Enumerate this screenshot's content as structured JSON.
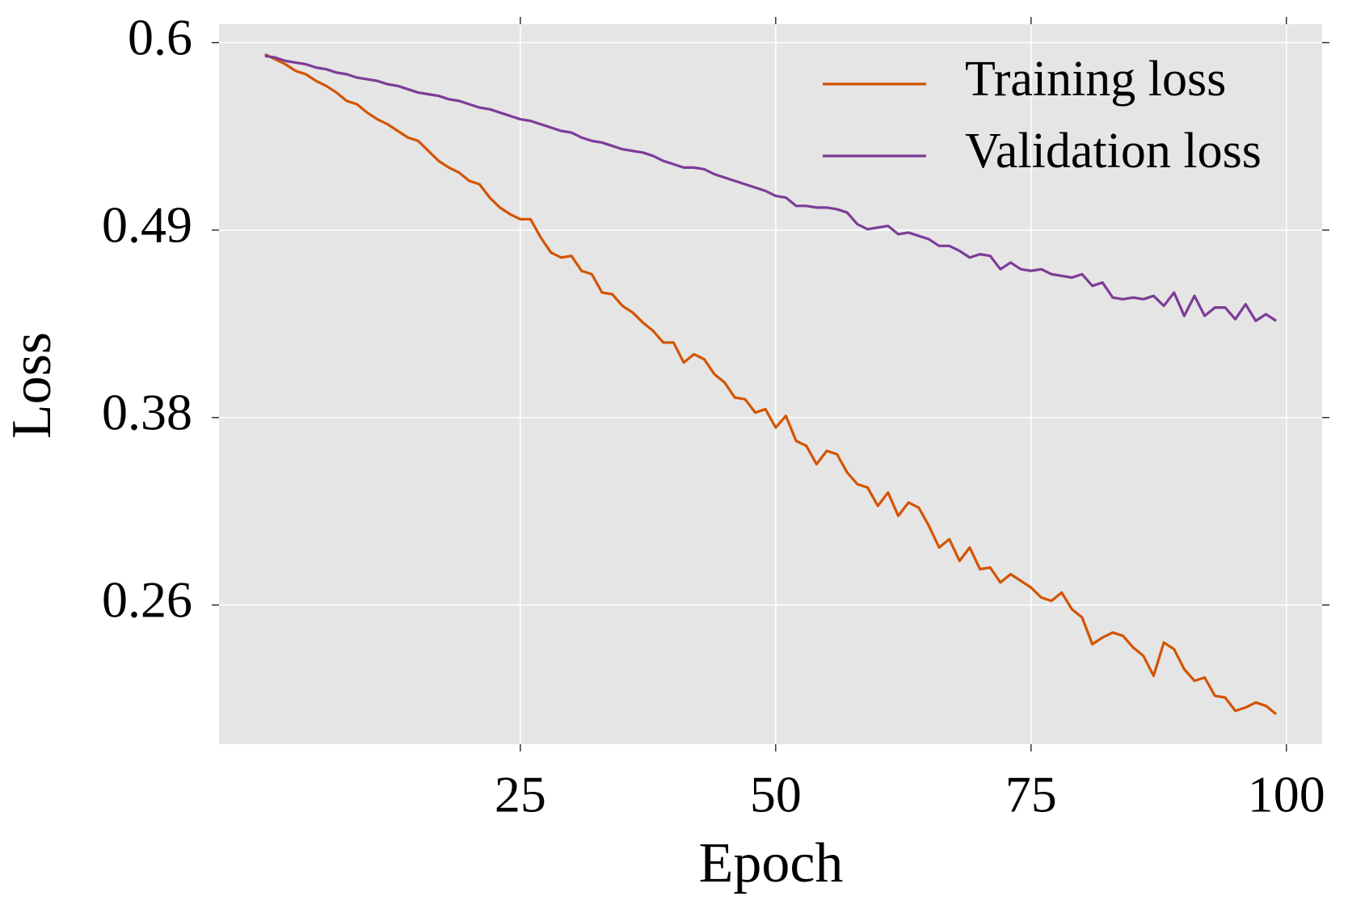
{
  "chart_data": {
    "type": "line",
    "xlabel": "Epoch",
    "ylabel": "Loss",
    "x": [
      0,
      1,
      2,
      3,
      4,
      5,
      6,
      7,
      8,
      9,
      10,
      11,
      12,
      13,
      14,
      15,
      16,
      17,
      18,
      19,
      20,
      21,
      22,
      23,
      24,
      25,
      26,
      27,
      28,
      29,
      30,
      31,
      32,
      33,
      34,
      35,
      36,
      37,
      38,
      39,
      40,
      41,
      42,
      43,
      44,
      45,
      46,
      47,
      48,
      49,
      50,
      51,
      52,
      53,
      54,
      55,
      56,
      57,
      58,
      59,
      60,
      61,
      62,
      63,
      64,
      65,
      66,
      67,
      68,
      69,
      70,
      71,
      72,
      73,
      74,
      75,
      76,
      77,
      78,
      79,
      80,
      81,
      82,
      83,
      84,
      85,
      86,
      87,
      88,
      89,
      90,
      91,
      92,
      93,
      94,
      95,
      96,
      97,
      98,
      99
    ],
    "series": [
      {
        "name": "Training loss",
        "color": "#d35400",
        "values": [
          0.593,
          0.59,
          0.587,
          0.583,
          0.581,
          0.577,
          0.574,
          0.57,
          0.565,
          0.563,
          0.558,
          0.554,
          0.551,
          0.547,
          0.543,
          0.541,
          0.535,
          0.529,
          0.525,
          0.522,
          0.517,
          0.515,
          0.507,
          0.501,
          0.497,
          0.494,
          0.494,
          0.483,
          0.474,
          0.471,
          0.472,
          0.463,
          0.461,
          0.45,
          0.449,
          0.442,
          0.438,
          0.432,
          0.427,
          0.42,
          0.42,
          0.408,
          0.413,
          0.41,
          0.401,
          0.396,
          0.387,
          0.386,
          0.378,
          0.38,
          0.369,
          0.376,
          0.361,
          0.358,
          0.347,
          0.355,
          0.353,
          0.342,
          0.335,
          0.333,
          0.322,
          0.33,
          0.316,
          0.324,
          0.321,
          0.31,
          0.297,
          0.302,
          0.289,
          0.297,
          0.284,
          0.285,
          0.276,
          0.281,
          0.277,
          0.273,
          0.267,
          0.265,
          0.27,
          0.26,
          0.255,
          0.239,
          0.243,
          0.246,
          0.244,
          0.237,
          0.232,
          0.22,
          0.24,
          0.236,
          0.224,
          0.217,
          0.219,
          0.208,
          0.207,
          0.199,
          0.201,
          0.204,
          0.202,
          0.197
        ]
      },
      {
        "name": "Validation loss",
        "color": "#7d3c98",
        "values": [
          0.592,
          0.591,
          0.589,
          0.588,
          0.587,
          0.585,
          0.584,
          0.582,
          0.581,
          0.579,
          0.578,
          0.577,
          0.575,
          0.574,
          0.572,
          0.57,
          0.569,
          0.568,
          0.566,
          0.565,
          0.563,
          0.561,
          0.56,
          0.558,
          0.556,
          0.554,
          0.553,
          0.551,
          0.549,
          0.547,
          0.546,
          0.543,
          0.541,
          0.54,
          0.538,
          0.536,
          0.535,
          0.534,
          0.532,
          0.529,
          0.527,
          0.525,
          0.525,
          0.524,
          0.521,
          0.519,
          0.517,
          0.515,
          0.513,
          0.511,
          0.508,
          0.507,
          0.502,
          0.502,
          0.501,
          0.501,
          0.5,
          0.498,
          0.491,
          0.488,
          0.489,
          0.49,
          0.485,
          0.486,
          0.484,
          0.482,
          0.478,
          0.478,
          0.475,
          0.471,
          0.473,
          0.472,
          0.464,
          0.468,
          0.464,
          0.463,
          0.464,
          0.461,
          0.46,
          0.459,
          0.461,
          0.454,
          0.456,
          0.447,
          0.446,
          0.447,
          0.446,
          0.448,
          0.442,
          0.45,
          0.436,
          0.448,
          0.436,
          0.441,
          0.441,
          0.434,
          0.443,
          0.433,
          0.437,
          0.433
        ]
      }
    ],
    "xlim": [
      -4.5,
      103.5
    ],
    "xticks": [
      25,
      50,
      75,
      100
    ],
    "ylim": [
      0.179,
      0.611
    ],
    "yticks": [
      {
        "value": 0.6,
        "label": "0.6"
      },
      {
        "value": 0.4875,
        "label": "0.49"
      },
      {
        "value": 0.375,
        "label": "0.38"
      },
      {
        "value": 0.2625,
        "label": "0.26"
      }
    ],
    "grid": true,
    "legend": "upper right"
  }
}
